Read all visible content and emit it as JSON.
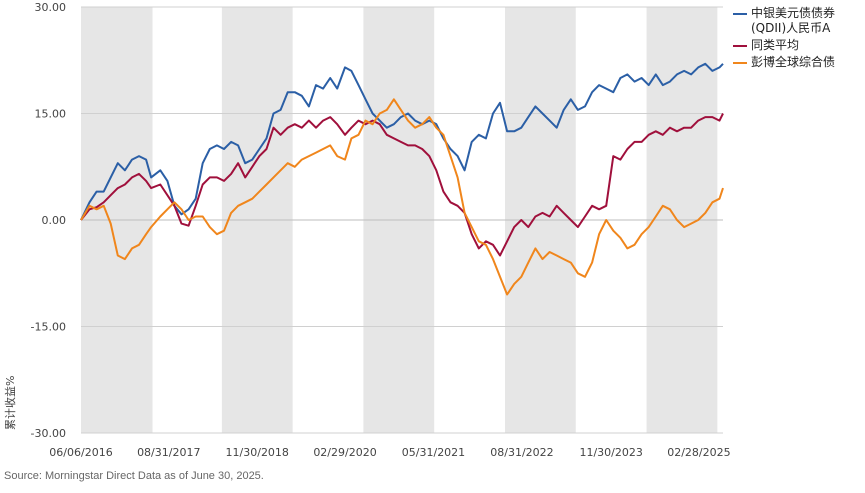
{
  "source_note": "Source: Morningstar Direct  Data as of June 30, 2025.",
  "chart_data": {
    "type": "line",
    "ylabel": "累计收益%",
    "ylim": [
      -30,
      30
    ],
    "yticks": [
      30,
      15,
      0,
      -15,
      -30
    ],
    "ytick_labels": [
      "30.00",
      "15.00",
      "0.00",
      "-15.00",
      "-30.00"
    ],
    "xlim": [
      2016.43,
      2025.5
    ],
    "xticks": [
      2016.43,
      2017.67,
      2018.92,
      2020.16,
      2021.41,
      2022.66,
      2023.92,
      2025.16
    ],
    "xtick_labels": [
      "06/06/2016",
      "08/31/2017",
      "11/30/2018",
      "02/29/2020",
      "05/31/2021",
      "08/31/2022",
      "11/30/2023",
      "02/28/2025"
    ],
    "shaded_periods": [
      [
        2016.43,
        2017.44
      ],
      [
        2018.42,
        2019.42
      ],
      [
        2020.42,
        2021.42
      ],
      [
        2022.42,
        2023.42
      ],
      [
        2024.42,
        2025.42
      ]
    ],
    "series": [
      {
        "name": "中银美元债债券(QDII)人民币A",
        "color": "#2b5fa6",
        "points": [
          [
            2016.43,
            0
          ],
          [
            2016.55,
            2.5
          ],
          [
            2016.65,
            4
          ],
          [
            2016.75,
            4
          ],
          [
            2016.85,
            6
          ],
          [
            2016.95,
            8
          ],
          [
            2017.05,
            7
          ],
          [
            2017.15,
            8.5
          ],
          [
            2017.25,
            9
          ],
          [
            2017.35,
            8.5
          ],
          [
            2017.42,
            6
          ],
          [
            2017.55,
            7
          ],
          [
            2017.65,
            5.5
          ],
          [
            2017.75,
            2
          ],
          [
            2017.85,
            0.8
          ],
          [
            2017.95,
            1.5
          ],
          [
            2018.05,
            3
          ],
          [
            2018.15,
            8
          ],
          [
            2018.25,
            10
          ],
          [
            2018.35,
            10.5
          ],
          [
            2018.45,
            10
          ],
          [
            2018.55,
            11
          ],
          [
            2018.65,
            10.5
          ],
          [
            2018.75,
            8
          ],
          [
            2018.85,
            8.5
          ],
          [
            2018.95,
            10
          ],
          [
            2019.05,
            11.5
          ],
          [
            2019.15,
            15
          ],
          [
            2019.25,
            15.5
          ],
          [
            2019.35,
            18
          ],
          [
            2019.45,
            18
          ],
          [
            2019.55,
            17.5
          ],
          [
            2019.65,
            16
          ],
          [
            2019.75,
            19
          ],
          [
            2019.85,
            18.5
          ],
          [
            2019.95,
            20
          ],
          [
            2020.05,
            18.5
          ],
          [
            2020.16,
            21.5
          ],
          [
            2020.25,
            21
          ],
          [
            2020.35,
            19
          ],
          [
            2020.45,
            17
          ],
          [
            2020.55,
            15
          ],
          [
            2020.65,
            14
          ],
          [
            2020.75,
            13
          ],
          [
            2020.85,
            13.5
          ],
          [
            2020.95,
            14.5
          ],
          [
            2021.05,
            15
          ],
          [
            2021.15,
            14
          ],
          [
            2021.25,
            13.5
          ],
          [
            2021.35,
            14
          ],
          [
            2021.45,
            13.5
          ],
          [
            2021.55,
            11.5
          ],
          [
            2021.65,
            10
          ],
          [
            2021.75,
            9
          ],
          [
            2021.85,
            7
          ],
          [
            2021.95,
            11
          ],
          [
            2022.05,
            12
          ],
          [
            2022.15,
            11.5
          ],
          [
            2022.25,
            15
          ],
          [
            2022.35,
            16.5
          ],
          [
            2022.45,
            12.5
          ],
          [
            2022.55,
            12.5
          ],
          [
            2022.65,
            13
          ],
          [
            2022.75,
            14.5
          ],
          [
            2022.85,
            16
          ],
          [
            2022.95,
            15
          ],
          [
            2023.05,
            14
          ],
          [
            2023.15,
            13
          ],
          [
            2023.25,
            15.5
          ],
          [
            2023.35,
            17
          ],
          [
            2023.45,
            15.5
          ],
          [
            2023.55,
            16
          ],
          [
            2023.65,
            18
          ],
          [
            2023.75,
            19
          ],
          [
            2023.85,
            18.5
          ],
          [
            2023.95,
            18
          ],
          [
            2024.05,
            20
          ],
          [
            2024.15,
            20.5
          ],
          [
            2024.25,
            19.5
          ],
          [
            2024.35,
            20
          ],
          [
            2024.45,
            19
          ],
          [
            2024.55,
            20.5
          ],
          [
            2024.65,
            19
          ],
          [
            2024.75,
            19.5
          ],
          [
            2024.85,
            20.5
          ],
          [
            2024.95,
            21
          ],
          [
            2025.05,
            20.5
          ],
          [
            2025.15,
            21.5
          ],
          [
            2025.25,
            22
          ],
          [
            2025.35,
            21
          ],
          [
            2025.45,
            21.5
          ],
          [
            2025.5,
            22
          ]
        ]
      },
      {
        "name": "同类平均",
        "color": "#a0103c",
        "points": [
          [
            2016.43,
            0
          ],
          [
            2016.55,
            1.5
          ],
          [
            2016.65,
            1.8
          ],
          [
            2016.75,
            2.5
          ],
          [
            2016.85,
            3.5
          ],
          [
            2016.95,
            4.5
          ],
          [
            2017.05,
            5
          ],
          [
            2017.15,
            6
          ],
          [
            2017.25,
            6.5
          ],
          [
            2017.35,
            5.5
          ],
          [
            2017.42,
            4.5
          ],
          [
            2017.55,
            5
          ],
          [
            2017.65,
            3.5
          ],
          [
            2017.75,
            2
          ],
          [
            2017.85,
            -0.5
          ],
          [
            2017.95,
            -0.8
          ],
          [
            2018.05,
            2
          ],
          [
            2018.15,
            5
          ],
          [
            2018.25,
            6
          ],
          [
            2018.35,
            6
          ],
          [
            2018.45,
            5.5
          ],
          [
            2018.55,
            6.5
          ],
          [
            2018.65,
            8
          ],
          [
            2018.75,
            6
          ],
          [
            2018.85,
            7.5
          ],
          [
            2018.95,
            9
          ],
          [
            2019.05,
            10
          ],
          [
            2019.15,
            13
          ],
          [
            2019.25,
            12
          ],
          [
            2019.35,
            13
          ],
          [
            2019.45,
            13.5
          ],
          [
            2019.55,
            13
          ],
          [
            2019.65,
            14
          ],
          [
            2019.75,
            13
          ],
          [
            2019.85,
            14
          ],
          [
            2019.95,
            14.5
          ],
          [
            2020.05,
            13.5
          ],
          [
            2020.16,
            12
          ],
          [
            2020.25,
            13
          ],
          [
            2020.35,
            14
          ],
          [
            2020.45,
            13.5
          ],
          [
            2020.55,
            14
          ],
          [
            2020.65,
            13.5
          ],
          [
            2020.75,
            12
          ],
          [
            2020.85,
            11.5
          ],
          [
            2020.95,
            11
          ],
          [
            2021.05,
            10.5
          ],
          [
            2021.15,
            10.5
          ],
          [
            2021.25,
            10
          ],
          [
            2021.35,
            9
          ],
          [
            2021.45,
            7
          ],
          [
            2021.55,
            4
          ],
          [
            2021.65,
            2.5
          ],
          [
            2021.75,
            2
          ],
          [
            2021.85,
            1
          ],
          [
            2021.95,
            -2
          ],
          [
            2022.05,
            -4
          ],
          [
            2022.15,
            -3
          ],
          [
            2022.25,
            -3.5
          ],
          [
            2022.35,
            -5
          ],
          [
            2022.45,
            -3
          ],
          [
            2022.55,
            -1
          ],
          [
            2022.65,
            0
          ],
          [
            2022.75,
            -1
          ],
          [
            2022.85,
            0.5
          ],
          [
            2022.95,
            1
          ],
          [
            2023.05,
            0.5
          ],
          [
            2023.15,
            2
          ],
          [
            2023.25,
            1
          ],
          [
            2023.35,
            0
          ],
          [
            2023.45,
            -1
          ],
          [
            2023.55,
            0.5
          ],
          [
            2023.65,
            2
          ],
          [
            2023.75,
            1.5
          ],
          [
            2023.85,
            2
          ],
          [
            2023.95,
            9
          ],
          [
            2024.05,
            8.5
          ],
          [
            2024.15,
            10
          ],
          [
            2024.25,
            11
          ],
          [
            2024.35,
            11
          ],
          [
            2024.45,
            12
          ],
          [
            2024.55,
            12.5
          ],
          [
            2024.65,
            12
          ],
          [
            2024.75,
            13
          ],
          [
            2024.85,
            12.5
          ],
          [
            2024.95,
            13
          ],
          [
            2025.05,
            13
          ],
          [
            2025.15,
            14
          ],
          [
            2025.25,
            14.5
          ],
          [
            2025.35,
            14.5
          ],
          [
            2025.45,
            14
          ],
          [
            2025.5,
            15
          ]
        ]
      },
      {
        "name": "彭博全球综合债",
        "color": "#f0861c",
        "points": [
          [
            2016.43,
            0
          ],
          [
            2016.55,
            2
          ],
          [
            2016.65,
            1.5
          ],
          [
            2016.75,
            2
          ],
          [
            2016.85,
            -0.5
          ],
          [
            2016.95,
            -5
          ],
          [
            2017.05,
            -5.5
          ],
          [
            2017.15,
            -4
          ],
          [
            2017.25,
            -3.5
          ],
          [
            2017.35,
            -2
          ],
          [
            2017.42,
            -1
          ],
          [
            2017.55,
            0.5
          ],
          [
            2017.65,
            1.5
          ],
          [
            2017.75,
            2.5
          ],
          [
            2017.85,
            1.5
          ],
          [
            2017.95,
            0
          ],
          [
            2018.05,
            0.5
          ],
          [
            2018.15,
            0.5
          ],
          [
            2018.25,
            -1
          ],
          [
            2018.35,
            -2
          ],
          [
            2018.45,
            -1.5
          ],
          [
            2018.55,
            1
          ],
          [
            2018.65,
            2
          ],
          [
            2018.75,
            2.5
          ],
          [
            2018.85,
            3
          ],
          [
            2018.95,
            4
          ],
          [
            2019.05,
            5
          ],
          [
            2019.15,
            6
          ],
          [
            2019.25,
            7
          ],
          [
            2019.35,
            8
          ],
          [
            2019.45,
            7.5
          ],
          [
            2019.55,
            8.5
          ],
          [
            2019.65,
            9
          ],
          [
            2019.75,
            9.5
          ],
          [
            2019.85,
            10
          ],
          [
            2019.95,
            10.5
          ],
          [
            2020.05,
            9
          ],
          [
            2020.16,
            8.5
          ],
          [
            2020.25,
            11.5
          ],
          [
            2020.35,
            12
          ],
          [
            2020.45,
            14
          ],
          [
            2020.55,
            13.5
          ],
          [
            2020.65,
            15
          ],
          [
            2020.75,
            15.5
          ],
          [
            2020.85,
            17
          ],
          [
            2020.95,
            15.5
          ],
          [
            2021.05,
            14
          ],
          [
            2021.15,
            13
          ],
          [
            2021.25,
            13.5
          ],
          [
            2021.35,
            14.5
          ],
          [
            2021.45,
            13
          ],
          [
            2021.55,
            12
          ],
          [
            2021.65,
            9
          ],
          [
            2021.75,
            6
          ],
          [
            2021.85,
            1
          ],
          [
            2021.95,
            -1
          ],
          [
            2022.05,
            -3
          ],
          [
            2022.15,
            -3.5
          ],
          [
            2022.25,
            -5.5
          ],
          [
            2022.35,
            -8
          ],
          [
            2022.45,
            -10.5
          ],
          [
            2022.55,
            -9
          ],
          [
            2022.65,
            -8
          ],
          [
            2022.75,
            -6
          ],
          [
            2022.85,
            -4
          ],
          [
            2022.95,
            -5.5
          ],
          [
            2023.05,
            -4.5
          ],
          [
            2023.15,
            -5
          ],
          [
            2023.25,
            -5.5
          ],
          [
            2023.35,
            -6
          ],
          [
            2023.45,
            -7.5
          ],
          [
            2023.55,
            -8
          ],
          [
            2023.65,
            -6
          ],
          [
            2023.75,
            -2
          ],
          [
            2023.85,
            0
          ],
          [
            2023.95,
            -1.5
          ],
          [
            2024.05,
            -2.5
          ],
          [
            2024.15,
            -4
          ],
          [
            2024.25,
            -3.5
          ],
          [
            2024.35,
            -2
          ],
          [
            2024.45,
            -1
          ],
          [
            2024.55,
            0.5
          ],
          [
            2024.65,
            2
          ],
          [
            2024.75,
            1.5
          ],
          [
            2024.85,
            0
          ],
          [
            2024.95,
            -1
          ],
          [
            2025.05,
            -0.5
          ],
          [
            2025.15,
            0
          ],
          [
            2025.25,
            1
          ],
          [
            2025.35,
            2.5
          ],
          [
            2025.45,
            3
          ],
          [
            2025.5,
            4.5
          ]
        ]
      }
    ]
  }
}
